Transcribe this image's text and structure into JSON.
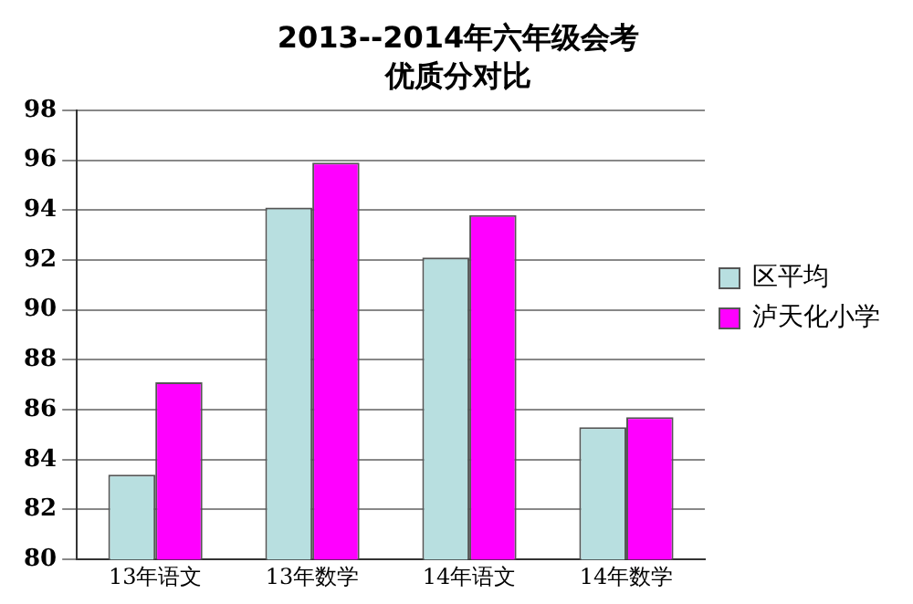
{
  "chart_data": {
    "type": "bar",
    "title": "2013--2014年六年级会考",
    "subtitle": "优质分对比",
    "categories": [
      "13年语文",
      "13年数学",
      "14年语文",
      "14年数学"
    ],
    "series": [
      {
        "name": "区平均",
        "color": "#b8dfe0",
        "values": [
          83.4,
          94.1,
          92.1,
          85.3
        ]
      },
      {
        "name": "泸天化小学",
        "color": "#ff00ff",
        "values": [
          87.1,
          95.9,
          93.8,
          85.7
        ]
      }
    ],
    "ylim": [
      80,
      98
    ],
    "yticks": [
      80,
      82,
      84,
      86,
      88,
      90,
      92,
      94,
      96,
      98
    ],
    "grid": "y",
    "legend": "right"
  }
}
